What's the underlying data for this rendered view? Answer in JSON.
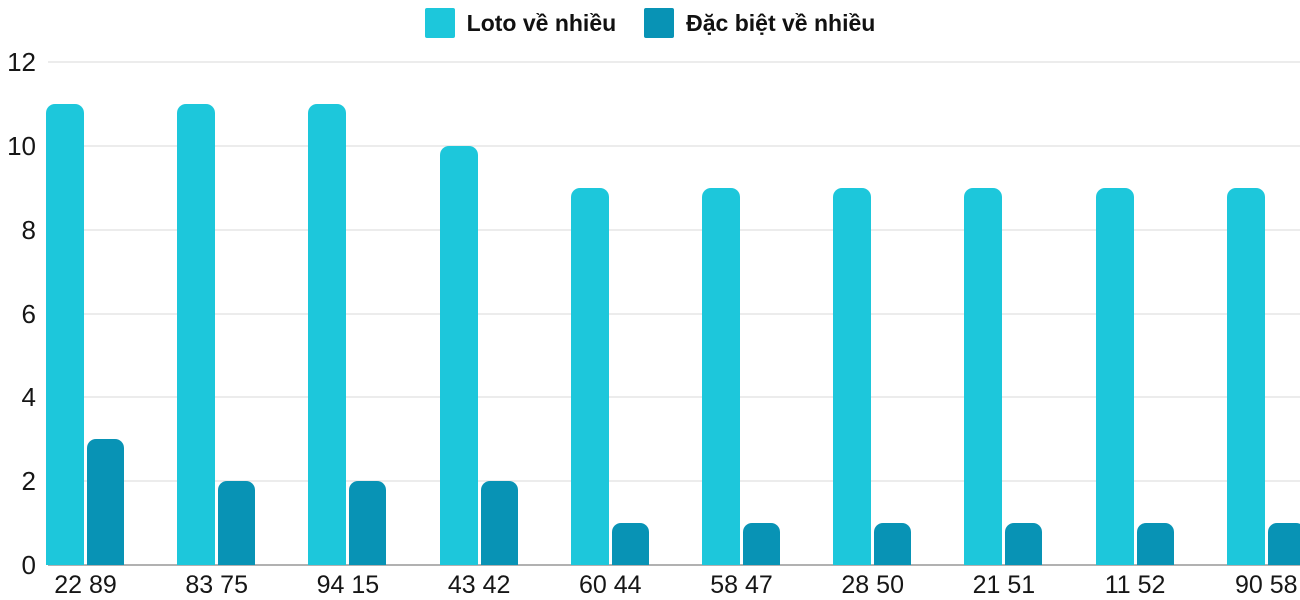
{
  "chart_data": {
    "type": "bar",
    "title": "",
    "xlabel": "",
    "ylabel": "",
    "categories": [
      "22 89",
      "83 75",
      "94 15",
      "43 42",
      "60 44",
      "58 47",
      "28 50",
      "21 51",
      "11 52",
      "90 58"
    ],
    "series": [
      {
        "name": "Loto về nhiều",
        "color": "#1dc7db",
        "values": [
          11,
          11,
          11,
          10,
          9,
          9,
          9,
          9,
          9,
          9
        ]
      },
      {
        "name": "Đặc biệt về nhiều",
        "color": "#0893b5",
        "values": [
          3,
          2,
          2,
          2,
          1,
          1,
          1,
          1,
          1,
          1
        ]
      }
    ],
    "ylim": [
      0,
      12
    ],
    "yticks": [
      0,
      2,
      4,
      6,
      8,
      10,
      12
    ],
    "grid": true,
    "legend_position": "top-center",
    "colors": {
      "background": "#ffffff",
      "gridline": "#ececec",
      "baseline": "#b1b1b1",
      "tick_text": "#161616",
      "legend_text": "#111111"
    }
  }
}
